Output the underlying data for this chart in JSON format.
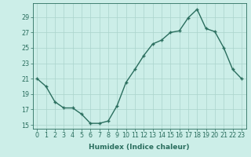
{
  "x": [
    0,
    1,
    2,
    3,
    4,
    5,
    6,
    7,
    8,
    9,
    10,
    11,
    12,
    13,
    14,
    15,
    16,
    17,
    18,
    19,
    20,
    21,
    22,
    23
  ],
  "y": [
    21,
    20,
    18,
    17.2,
    17.2,
    16.4,
    15.2,
    15.2,
    15.5,
    17.5,
    20.5,
    22.2,
    24.0,
    25.5,
    26.0,
    27.0,
    27.2,
    28.9,
    30.0,
    27.5,
    27.1,
    25.0,
    22.2,
    21.0
  ],
  "bg_color": "#cceee8",
  "grid_color": "#aad4cc",
  "line_color": "#2a6e5e",
  "marker_color": "#2a6e5e",
  "xlabel": "Humidex (Indice chaleur)",
  "ylim": [
    14.5,
    30.8
  ],
  "xlim": [
    -0.5,
    23.5
  ],
  "yticks": [
    15,
    17,
    19,
    21,
    23,
    25,
    27,
    29
  ],
  "xticks": [
    0,
    1,
    2,
    3,
    4,
    5,
    6,
    7,
    8,
    9,
    10,
    11,
    12,
    13,
    14,
    15,
    16,
    17,
    18,
    19,
    20,
    21,
    22,
    23
  ],
  "xtick_labels": [
    "0",
    "1",
    "2",
    "3",
    "4",
    "5",
    "6",
    "7",
    "8",
    "9",
    "10",
    "11",
    "12",
    "13",
    "14",
    "15",
    "16",
    "17",
    "18",
    "19",
    "20",
    "21",
    "22",
    "23"
  ],
  "axis_fontsize": 6.5,
  "tick_fontsize": 5.8,
  "line_width": 1.0,
  "marker_size": 2.5
}
